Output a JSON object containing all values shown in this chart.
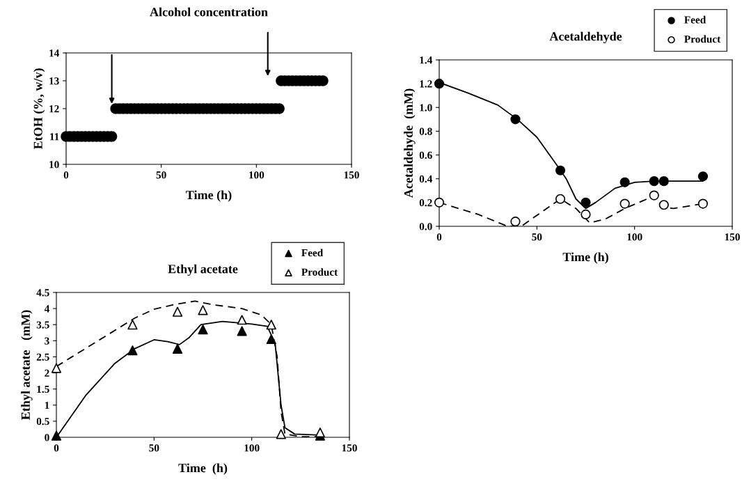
{
  "chart_data": [
    {
      "type": "scatter",
      "title": "Alcohol concentration",
      "xlabel": "Time (h)",
      "ylabel": "EtOH (%, w/v)",
      "xlim": [
        0,
        150
      ],
      "xticks": [
        0,
        50,
        100,
        150
      ],
      "ylim": [
        10,
        14
      ],
      "yticks": [
        10,
        11,
        12,
        13,
        14
      ],
      "grid": false,
      "legend": false,
      "marker": "circle",
      "series": [
        {
          "color": "#000000",
          "x": [
            0,
            2,
            4,
            6,
            8,
            10,
            12,
            14,
            16,
            18,
            20,
            22,
            24,
            26,
            28,
            30,
            32,
            34,
            36,
            38,
            40,
            42,
            44,
            46,
            48,
            50,
            52,
            54,
            56,
            58,
            60,
            62,
            64,
            66,
            68,
            70,
            72,
            74,
            76,
            78,
            80,
            82,
            84,
            86,
            88,
            90,
            92,
            94,
            96,
            98,
            100,
            102,
            104,
            106,
            108,
            110,
            112,
            113,
            115,
            117,
            119,
            121,
            123,
            125,
            127,
            129,
            131,
            133,
            135
          ],
          "values": [
            11,
            11,
            11,
            11,
            11,
            11,
            11,
            11,
            11,
            11,
            11,
            11,
            11,
            12,
            12,
            12,
            12,
            12,
            12,
            12,
            12,
            12,
            12,
            12,
            12,
            12,
            12,
            12,
            12,
            12,
            12,
            12,
            12,
            12,
            12,
            12,
            12,
            12,
            12,
            12,
            12,
            12,
            12,
            12,
            12,
            12,
            12,
            12,
            12,
            12,
            12,
            12,
            12,
            12,
            12,
            12,
            12,
            13,
            13,
            13,
            13,
            13,
            13,
            13,
            13,
            13,
            13,
            13,
            13
          ]
        }
      ]
    },
    {
      "type": "scatter",
      "title": "Acetaldehyde",
      "xlabel": "Time (h)",
      "ylabel": "Acetaldehyde  (mM)",
      "xlim": [
        0,
        150
      ],
      "xticks": [
        0,
        50,
        100,
        150
      ],
      "ylim": [
        0,
        1.4
      ],
      "yticks": [
        {
          "value": 0,
          "label": "0.0"
        },
        {
          "value": 0.2,
          "label": "0.2"
        },
        {
          "value": 0.4,
          "label": "0.4"
        },
        {
          "value": 0.6,
          "label": "0.6"
        },
        {
          "value": 0.8,
          "label": "0.8"
        },
        {
          "value": 1,
          "label": "1.0"
        },
        {
          "value": 1.2,
          "label": "1.2"
        },
        {
          "value": 1.4,
          "label": "1.4"
        }
      ],
      "grid": false,
      "legend": "top right",
      "marker": "circle",
      "series": [
        {
          "name": "Feed",
          "color": "#000000",
          "x": [
            0,
            39,
            62,
            75,
            95,
            110,
            115,
            135
          ],
          "values": [
            1.2,
            0.9,
            0.47,
            0.2,
            0.37,
            0.38,
            0.38,
            0.42
          ]
        },
        {
          "name": "Product",
          "color": "#ffffff",
          "x": [
            0,
            39,
            62,
            75,
            95,
            110,
            115,
            135
          ],
          "values": [
            0.2,
            0.04,
            0.23,
            0.1,
            0.19,
            0.26,
            0.18,
            0.19
          ]
        },
        {
          "type": "line",
          "marker": "none",
          "line_style": "solid",
          "color": "#000000",
          "x": [
            0,
            15,
            30,
            40,
            50,
            60,
            65,
            70,
            75,
            80,
            90,
            100,
            110,
            135
          ],
          "values": [
            1.21,
            1.12,
            1.02,
            0.9,
            0.75,
            0.52,
            0.4,
            0.23,
            0.15,
            0.2,
            0.32,
            0.37,
            0.38,
            0.38
          ]
        },
        {
          "type": "line",
          "marker": "none",
          "line_style": "dashed",
          "color": "#000000",
          "x": [
            0,
            20,
            35,
            42,
            55,
            62,
            70,
            77,
            85,
            95,
            105,
            110,
            115,
            120,
            135
          ],
          "values": [
            0.2,
            0.1,
            0.0,
            0.0,
            0.15,
            0.23,
            0.15,
            0.03,
            0.06,
            0.15,
            0.22,
            0.26,
            0.16,
            0.15,
            0.19
          ]
        }
      ]
    },
    {
      "type": "scatter",
      "title": "Ethyl acetate",
      "xlabel": "Time  (h)",
      "ylabel": "Ethyl acetate   (mM)",
      "xlim": [
        0,
        150
      ],
      "xticks": [
        0,
        50,
        100,
        150
      ],
      "ylim": [
        0,
        4.5
      ],
      "yticks": [
        0,
        0.5,
        1,
        1.5,
        2,
        2.5,
        3,
        3.5,
        4,
        4.5
      ],
      "grid": false,
      "legend": "top right",
      "marker": "triangle",
      "series": [
        {
          "name": "Feed",
          "color": "#000000",
          "x": [
            0,
            39,
            62,
            75,
            95,
            110,
            115,
            135
          ],
          "values": [
            0.05,
            2.7,
            2.75,
            3.35,
            3.3,
            3.05,
            null,
            0.05
          ]
        },
        {
          "name": "Product",
          "color": "#ffffff",
          "x": [
            0,
            39,
            62,
            75,
            95,
            110,
            115,
            135
          ],
          "values": [
            2.15,
            3.5,
            3.9,
            3.95,
            3.65,
            3.5,
            0.1,
            0.15
          ]
        },
        {
          "type": "line",
          "marker": "none",
          "line_style": "solid",
          "color": "#000000",
          "x": [
            0,
            15,
            30,
            40,
            50,
            57,
            63,
            68,
            74,
            85,
            100,
            108,
            112,
            115,
            117,
            122,
            135
          ],
          "values": [
            0,
            1.3,
            2.3,
            2.75,
            3.03,
            2.97,
            2.88,
            3.1,
            3.5,
            3.6,
            3.52,
            3.45,
            2.9,
            1.0,
            0.3,
            0.1,
            0.07
          ]
        },
        {
          "type": "line",
          "marker": "none",
          "line_style": "dashed",
          "color": "#000000",
          "x": [
            0,
            20,
            40,
            50,
            60,
            71,
            80,
            95,
            105,
            110,
            113,
            115,
            117,
            125,
            135
          ],
          "values": [
            2.2,
            2.95,
            3.7,
            3.98,
            4.12,
            4.23,
            4.12,
            4.0,
            3.8,
            3.5,
            2.5,
            0.8,
            0.1,
            0.02,
            0.02
          ]
        }
      ]
    }
  ]
}
